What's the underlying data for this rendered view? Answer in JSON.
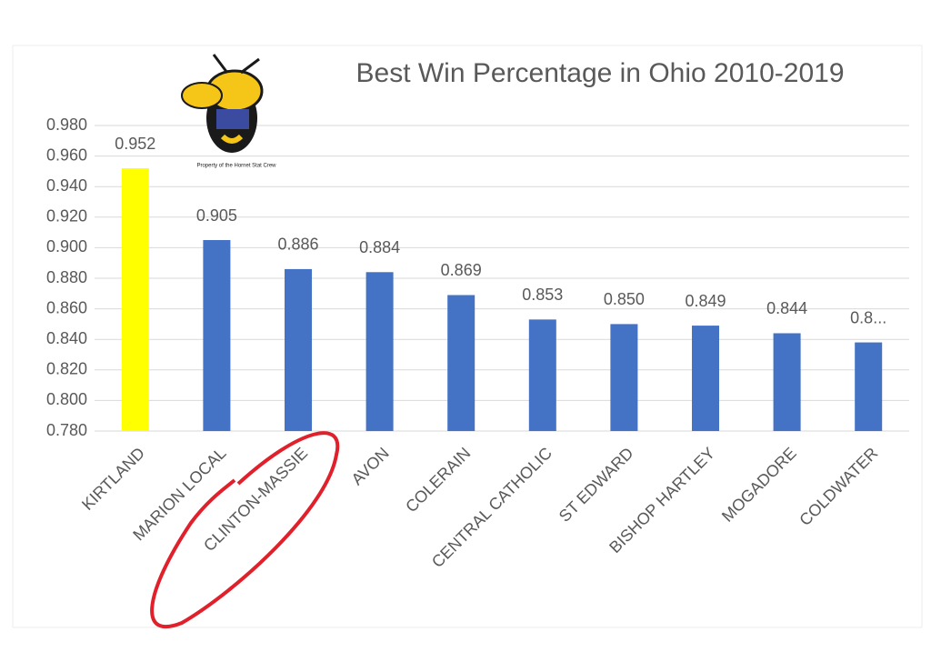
{
  "chart_data": {
    "type": "bar",
    "title": "Best Win Percentage in Ohio 2010-2019",
    "annotation": "Property of the Hornet Stat Crew",
    "categories": [
      "KIRTLAND",
      "MARION LOCAL",
      "CLINTON-MASSIE",
      "AVON",
      "COLERAIN",
      "CENTRAL CATHOLIC",
      "ST EDWARD",
      "BISHOP HARTLEY",
      "MOGADORE",
      "COLDWATER"
    ],
    "values": [
      0.952,
      0.905,
      0.886,
      0.884,
      0.869,
      0.853,
      0.85,
      0.849,
      0.844,
      0.838
    ],
    "value_labels": [
      "0.952",
      "0.905",
      "0.886",
      "0.884",
      "0.869",
      "0.853",
      "0.850",
      "0.849",
      "0.844",
      "0.8..."
    ],
    "colors": [
      "#ffff00",
      "#4472c4",
      "#4472c4",
      "#4472c4",
      "#4472c4",
      "#4472c4",
      "#4472c4",
      "#4472c4",
      "#4472c4",
      "#4472c4"
    ],
    "ylim": [
      0.78,
      0.98
    ],
    "yticks": [
      {
        "value": 0.78,
        "label": "0.780"
      },
      {
        "value": 0.8,
        "label": "0.800"
      },
      {
        "value": 0.82,
        "label": "0.820"
      },
      {
        "value": 0.84,
        "label": "0.840"
      },
      {
        "value": 0.86,
        "label": "0.860"
      },
      {
        "value": 0.88,
        "label": "0.880"
      },
      {
        "value": 0.9,
        "label": "0.900"
      },
      {
        "value": 0.92,
        "label": "0.920"
      },
      {
        "value": 0.94,
        "label": "0.940"
      },
      {
        "value": 0.96,
        "label": "0.960"
      },
      {
        "value": 0.98,
        "label": "0.980"
      }
    ],
    "grid": true
  }
}
